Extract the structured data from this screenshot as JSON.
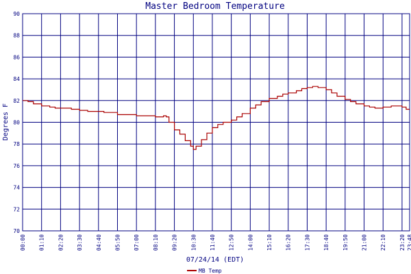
{
  "chart_data": {
    "type": "line",
    "title": "Master Bedroom Temperature",
    "xlabel": "07/24/14 (EDT)",
    "ylabel": "Degrees F",
    "ylim": [
      70,
      90
    ],
    "yticks": [
      "90",
      "88",
      "86",
      "84",
      "82",
      "80",
      "78",
      "76",
      "74",
      "72",
      "70"
    ],
    "xticks": [
      "00:00",
      "01:10",
      "02:20",
      "03:30",
      "04:40",
      "05:50",
      "07:00",
      "08:10",
      "09:20",
      "10:30",
      "11:40",
      "12:50",
      "14:00",
      "15:10",
      "16:20",
      "17:30",
      "18:40",
      "19:50",
      "21:00",
      "22:10",
      "23:20",
      "23:48"
    ],
    "grid": true,
    "legend": "bottom-left",
    "colors": {
      "series": "#aa0000",
      "grid": "#000080",
      "text": "#000080"
    },
    "series": [
      {
        "name": "MB Temp",
        "x": [
          "00:00",
          "00:20",
          "00:40",
          "01:10",
          "01:40",
          "02:00",
          "02:20",
          "03:00",
          "03:30",
          "04:00",
          "04:40",
          "05:00",
          "05:50",
          "06:30",
          "07:00",
          "07:30",
          "08:10",
          "08:40",
          "08:50",
          "09:00",
          "09:20",
          "09:40",
          "10:00",
          "10:20",
          "10:30",
          "10:40",
          "11:00",
          "11:20",
          "11:40",
          "12:00",
          "12:20",
          "12:50",
          "13:10",
          "13:30",
          "14:00",
          "14:20",
          "14:40",
          "15:10",
          "15:40",
          "16:00",
          "16:20",
          "16:50",
          "17:10",
          "17:30",
          "17:50",
          "18:10",
          "18:40",
          "19:00",
          "19:20",
          "19:50",
          "20:10",
          "20:30",
          "21:00",
          "21:20",
          "21:40",
          "22:10",
          "22:40",
          "23:00",
          "23:20",
          "23:35",
          "23:48"
        ],
        "y": [
          82.0,
          81.9,
          81.7,
          81.5,
          81.4,
          81.3,
          81.3,
          81.2,
          81.1,
          81.0,
          81.0,
          80.9,
          80.7,
          80.7,
          80.6,
          80.6,
          80.5,
          80.6,
          80.5,
          80.0,
          79.3,
          78.9,
          78.3,
          77.8,
          77.5,
          77.8,
          78.4,
          79.0,
          79.5,
          79.8,
          80.0,
          80.2,
          80.5,
          80.8,
          81.3,
          81.6,
          81.9,
          82.2,
          82.4,
          82.6,
          82.7,
          82.9,
          83.1,
          83.2,
          83.3,
          83.2,
          83.0,
          82.7,
          82.4,
          82.1,
          81.9,
          81.7,
          81.5,
          81.4,
          81.3,
          81.4,
          81.5,
          81.5,
          81.4,
          81.2,
          81.2
        ]
      }
    ]
  }
}
